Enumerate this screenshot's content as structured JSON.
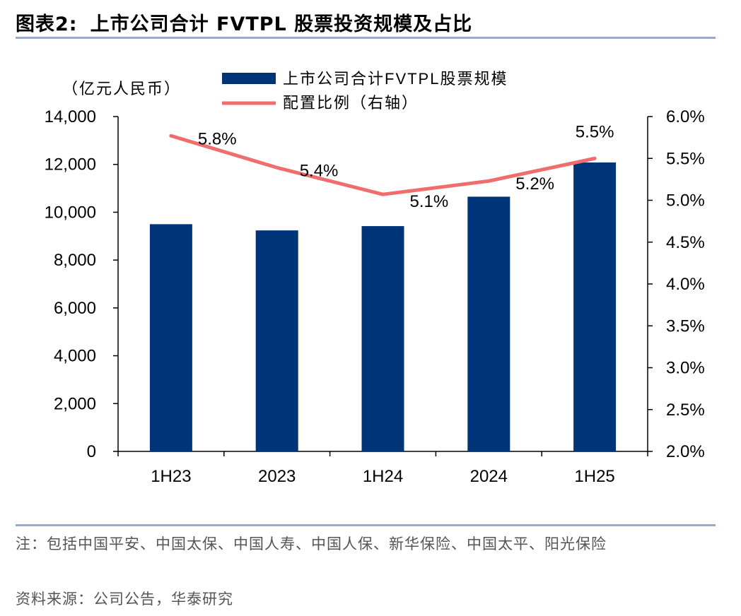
{
  "figure": {
    "number": "图表2:",
    "title": "上市公司合计 FVTPL 股票投资规模及占比"
  },
  "footer": {
    "note": "注：包括中国平安、中国太保、中国人寿、中国人保、新华保险、中国太平、阳光保险",
    "source": "资料来源：公司公告，华泰研究"
  },
  "colors": {
    "bar": "#003478",
    "line": "#f06d6d",
    "rule": "#9aaac6"
  },
  "chart_data": {
    "type": "bar",
    "categories": [
      "1H23",
      "2023",
      "1H24",
      "2024",
      "1H25"
    ],
    "series": [
      {
        "name": "上市公司合计FVTPL股票规模",
        "type": "bar",
        "axis": "left",
        "values": [
          9500,
          9240,
          9420,
          10650,
          12080
        ]
      },
      {
        "name": "配置比例（右轴）",
        "type": "line",
        "axis": "right",
        "values": [
          5.77,
          5.39,
          5.07,
          5.23,
          5.5
        ],
        "labels": [
          "5.8%",
          "5.4%",
          "5.1%",
          "5.2%",
          "5.5%"
        ]
      }
    ],
    "left_axis": {
      "unit_label": "（亿元人民币）",
      "min": 0,
      "max": 14000,
      "step": 2000,
      "tick_labels": [
        "0",
        "2,000",
        "4,000",
        "6,000",
        "8,000",
        "10,000",
        "12,000",
        "14,000"
      ]
    },
    "right_axis": {
      "min": 2.0,
      "max": 6.0,
      "step": 0.5,
      "tick_labels": [
        "2.0%",
        "2.5%",
        "3.0%",
        "3.5%",
        "4.0%",
        "4.5%",
        "5.0%",
        "5.5%",
        "6.0%"
      ]
    },
    "legend_position": "top-center",
    "grid": false
  }
}
